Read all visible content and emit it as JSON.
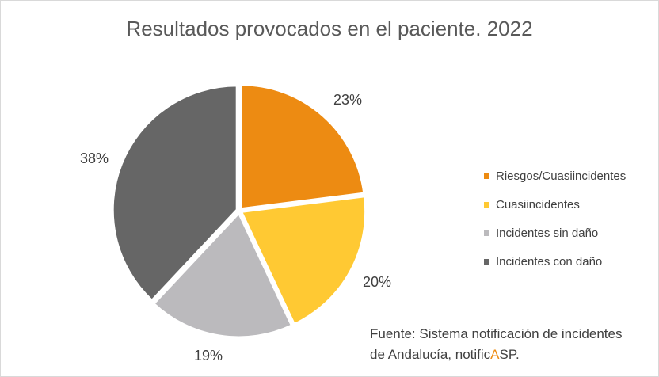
{
  "chart_data": {
    "type": "pie",
    "title": "Resultados provocados en el paciente. 2022",
    "slices": [
      {
        "label": "Riesgos/Cuasiincidentes",
        "value": 23,
        "value_label": "23%",
        "color": "#ED8B12"
      },
      {
        "label": "Cuasiincidentes",
        "value": 20,
        "value_label": "20%",
        "color": "#FFC933"
      },
      {
        "label": "Incidentes sin daño",
        "value": 19,
        "value_label": "19%",
        "color": "#BBBABD"
      },
      {
        "label": "Incidentes con daño",
        "value": 38,
        "value_label": "38%",
        "color": "#666666"
      }
    ],
    "legend_position": "right"
  },
  "source": {
    "line1": "Fuente: Sistema notificación de incidentes",
    "line2_prefix": "de Andalucía, notific",
    "line2_accent": "A",
    "line2_suffix": "SP."
  }
}
